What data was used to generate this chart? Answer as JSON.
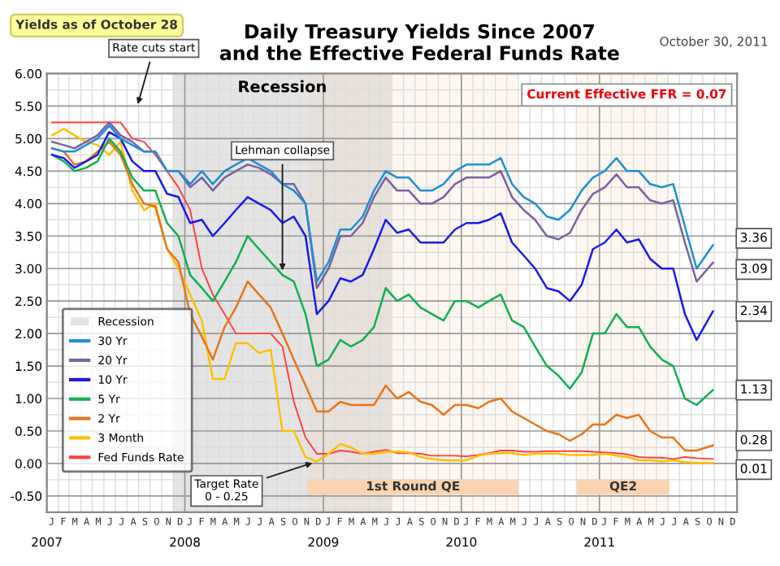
{
  "chart_data": {
    "type": "line",
    "title": "Daily Treasury Yields Since 2007\nand the Effective Federal Funds Rate",
    "x": [
      "2007-01-15",
      "2007-02-15",
      "2007-03-15",
      "2007-04-15",
      "2007-05-15",
      "2007-06-15",
      "2007-07-15",
      "2007-08-15",
      "2007-09-15",
      "2007-10-15",
      "2007-11-15",
      "2007-12-15",
      "2008-01-15",
      "2008-02-15",
      "2008-03-15",
      "2008-04-15",
      "2008-05-15",
      "2008-06-15",
      "2008-07-15",
      "2008-08-15",
      "2008-09-15",
      "2008-10-15",
      "2008-11-15",
      "2008-12-15",
      "2009-01-15",
      "2009-02-15",
      "2009-03-15",
      "2009-04-15",
      "2009-05-15",
      "2009-06-15",
      "2009-07-15",
      "2009-08-15",
      "2009-09-15",
      "2009-10-15",
      "2009-11-15",
      "2009-12-15",
      "2010-01-15",
      "2010-02-15",
      "2010-03-15",
      "2010-04-15",
      "2010-05-15",
      "2010-06-15",
      "2010-07-15",
      "2010-08-15",
      "2010-09-15",
      "2010-10-15",
      "2010-11-15",
      "2010-12-15",
      "2011-01-15",
      "2011-02-15",
      "2011-03-15",
      "2011-04-15",
      "2011-05-15",
      "2011-06-15",
      "2011-07-15",
      "2011-08-15",
      "2011-09-15",
      "2011-10-28"
    ],
    "series": [
      {
        "name": "30 Yr",
        "color": "#1f8fd6",
        "values": [
          4.85,
          4.8,
          4.8,
          4.9,
          5.0,
          5.2,
          5.0,
          4.9,
          4.8,
          4.8,
          4.5,
          4.5,
          4.3,
          4.5,
          4.3,
          4.5,
          4.6,
          4.7,
          4.6,
          4.5,
          4.3,
          4.2,
          4.0,
          2.8,
          3.1,
          3.6,
          3.6,
          3.8,
          4.2,
          4.5,
          4.4,
          4.4,
          4.2,
          4.2,
          4.3,
          4.5,
          4.6,
          4.6,
          4.6,
          4.7,
          4.3,
          4.1,
          4.0,
          3.8,
          3.75,
          3.9,
          4.2,
          4.4,
          4.5,
          4.7,
          4.5,
          4.5,
          4.3,
          4.25,
          4.3,
          3.65,
          3.0,
          3.36
        ]
      },
      {
        "name": "20 Yr",
        "color": "#7a62a0",
        "values": [
          4.95,
          4.9,
          4.85,
          4.95,
          5.05,
          5.25,
          5.05,
          4.95,
          4.8,
          4.8,
          4.5,
          4.5,
          4.25,
          4.4,
          4.2,
          4.4,
          4.5,
          4.6,
          4.55,
          4.45,
          4.3,
          4.3,
          4.0,
          2.7,
          3.0,
          3.5,
          3.5,
          3.7,
          4.1,
          4.4,
          4.2,
          4.2,
          4.0,
          4.0,
          4.1,
          4.3,
          4.4,
          4.4,
          4.4,
          4.5,
          4.1,
          3.9,
          3.75,
          3.5,
          3.45,
          3.55,
          3.9,
          4.15,
          4.25,
          4.45,
          4.25,
          4.25,
          4.05,
          4.0,
          4.05,
          3.4,
          2.8,
          3.09
        ]
      },
      {
        "name": "10 Yr",
        "color": "#1a1aeb",
        "values": [
          4.75,
          4.7,
          4.55,
          4.65,
          4.75,
          5.1,
          5.0,
          4.65,
          4.5,
          4.5,
          4.15,
          4.1,
          3.7,
          3.75,
          3.5,
          3.7,
          3.9,
          4.1,
          4.0,
          3.9,
          3.7,
          3.8,
          3.5,
          2.3,
          2.5,
          2.85,
          2.8,
          2.9,
          3.3,
          3.75,
          3.55,
          3.6,
          3.4,
          3.4,
          3.4,
          3.6,
          3.7,
          3.7,
          3.75,
          3.85,
          3.4,
          3.2,
          3.0,
          2.7,
          2.65,
          2.5,
          2.75,
          3.3,
          3.4,
          3.6,
          3.4,
          3.45,
          3.15,
          3.0,
          3.0,
          2.3,
          1.9,
          2.34
        ]
      },
      {
        "name": "5 Yr",
        "color": "#10b050",
        "values": [
          4.75,
          4.65,
          4.5,
          4.55,
          4.65,
          5.0,
          4.8,
          4.4,
          4.2,
          4.2,
          3.7,
          3.5,
          2.9,
          2.7,
          2.5,
          2.8,
          3.1,
          3.5,
          3.3,
          3.1,
          2.9,
          2.8,
          2.3,
          1.5,
          1.6,
          1.9,
          1.8,
          1.9,
          2.1,
          2.7,
          2.5,
          2.6,
          2.4,
          2.3,
          2.2,
          2.5,
          2.5,
          2.4,
          2.5,
          2.6,
          2.2,
          2.1,
          1.8,
          1.5,
          1.35,
          1.15,
          1.4,
          2.0,
          2.0,
          2.3,
          2.1,
          2.1,
          1.8,
          1.6,
          1.5,
          1.0,
          0.9,
          1.13
        ]
      },
      {
        "name": "2 Yr",
        "color": "#e8751a",
        "values": [
          4.85,
          4.8,
          4.6,
          4.65,
          4.8,
          4.95,
          4.75,
          4.3,
          4.0,
          3.95,
          3.3,
          3.1,
          2.3,
          1.95,
          1.6,
          2.1,
          2.4,
          2.8,
          2.6,
          2.4,
          2.0,
          1.6,
          1.2,
          0.8,
          0.8,
          0.95,
          0.9,
          0.9,
          0.9,
          1.2,
          1.0,
          1.1,
          0.95,
          0.9,
          0.75,
          0.9,
          0.9,
          0.85,
          0.95,
          1.0,
          0.8,
          0.7,
          0.6,
          0.5,
          0.45,
          0.35,
          0.45,
          0.6,
          0.6,
          0.75,
          0.7,
          0.75,
          0.5,
          0.4,
          0.4,
          0.2,
          0.2,
          0.28
        ]
      },
      {
        "name": "3 Month",
        "color": "#ffc000",
        "values": [
          5.05,
          5.15,
          5.05,
          4.95,
          4.9,
          4.75,
          4.95,
          4.2,
          3.9,
          4.0,
          3.3,
          3.0,
          2.6,
          2.2,
          1.3,
          1.3,
          1.85,
          1.85,
          1.7,
          1.75,
          0.5,
          0.5,
          0.1,
          0.03,
          0.15,
          0.3,
          0.25,
          0.15,
          0.15,
          0.18,
          0.18,
          0.17,
          0.1,
          0.07,
          0.05,
          0.05,
          0.05,
          0.12,
          0.15,
          0.16,
          0.16,
          0.13,
          0.15,
          0.15,
          0.15,
          0.13,
          0.13,
          0.13,
          0.15,
          0.12,
          0.1,
          0.05,
          0.05,
          0.03,
          0.05,
          0.02,
          0.01,
          0.01
        ]
      },
      {
        "name": "Fed Funds Rate",
        "color": "#ff4040",
        "values": [
          5.25,
          5.25,
          5.25,
          5.25,
          5.25,
          5.25,
          5.25,
          5.0,
          4.95,
          4.75,
          4.5,
          4.25,
          3.9,
          3.0,
          2.6,
          2.3,
          2.0,
          2.0,
          2.0,
          2.0,
          1.8,
          0.95,
          0.4,
          0.15,
          0.15,
          0.2,
          0.18,
          0.15,
          0.18,
          0.21,
          0.16,
          0.16,
          0.15,
          0.12,
          0.12,
          0.12,
          0.11,
          0.13,
          0.16,
          0.2,
          0.2,
          0.18,
          0.18,
          0.19,
          0.19,
          0.19,
          0.19,
          0.18,
          0.17,
          0.16,
          0.14,
          0.1,
          0.09,
          0.09,
          0.07,
          0.1,
          0.08,
          0.07
        ]
      }
    ],
    "xlim": [
      "2007-01-01",
      "2011-12-31"
    ],
    "xticks": [
      {
        "value": "2007-01-01",
        "label": "2007"
      },
      {
        "value": "2008-01-01",
        "label": "2008"
      },
      {
        "value": "2009-01-01",
        "label": "2009"
      },
      {
        "value": "2010-01-01",
        "label": "2010"
      },
      {
        "value": "2011-01-01",
        "label": "2011"
      }
    ],
    "ylim": [
      -0.75,
      6
    ],
    "yticks": [
      {
        "value": -0.5,
        "label": "-0.50"
      },
      {
        "value": 0,
        "label": "0.00"
      },
      {
        "value": 0.5,
        "label": "0.50"
      },
      {
        "value": 1,
        "label": "1.00"
      },
      {
        "value": 1.5,
        "label": "1.50"
      },
      {
        "value": 2,
        "label": "2.00"
      },
      {
        "value": 2.5,
        "label": "2.50"
      },
      {
        "value": 3,
        "label": "3.00"
      },
      {
        "value": 3.5,
        "label": "3.50"
      },
      {
        "value": 4,
        "label": "4.00"
      },
      {
        "value": 4.5,
        "label": "4.50"
      },
      {
        "value": 5,
        "label": "5.00"
      },
      {
        "value": 5.5,
        "label": "5.50"
      },
      {
        "value": 6,
        "label": "6.00"
      }
    ],
    "bands": [
      {
        "axis": "x",
        "from": "2007-12-01",
        "to": "2009-06-30",
        "label": "Recession",
        "color": "#e4e4e4"
      },
      {
        "axis": "x",
        "from": "2008-11-20",
        "to": "2010-06-01",
        "label": "1st Round QE",
        "color": "#fbd3b0"
      },
      {
        "axis": "x",
        "from": "2010-11-03",
        "to": "2011-07-05",
        "label": "QE2",
        "color": "#fbd3b0"
      }
    ],
    "annotations": [
      "Yields as of October 28",
      "October 30, 2011",
      "Current Effective FFR = 0.07",
      "Rate cuts start",
      "J F M A M J J A S O N D",
      "J F M A M J J A S O N D",
      "J F M A M J J A S O N D",
      "J F M A M J J A S O N D",
      "J F M A M J J A S O N D",
      {
        "text": "Lehman collapse",
        "x": "2008-09-15",
        "y": 2.9
      },
      {
        "text": "Target Rate\n0 - 0.25",
        "x": "2008-12-15",
        "y": 0.03
      },
      {
        "text": "3.36",
        "x": "2011-10-28",
        "y": 3.36
      },
      {
        "text": "3.09",
        "x": "2011-10-28",
        "y": 3.09
      },
      {
        "text": "2.34",
        "x": "2011-10-28",
        "y": 2.34
      },
      {
        "text": "1.13",
        "x": "2011-10-28",
        "y": 1.13
      },
      {
        "text": "0.28",
        "x": "2011-10-28",
        "y": 0.28
      },
      {
        "text": "0.01",
        "x": "2011-10-28",
        "y": 0.01
      }
    ],
    "grid": true,
    "legend": "bottom left",
    "marker": "none",
    "line_style": "solid"
  }
}
